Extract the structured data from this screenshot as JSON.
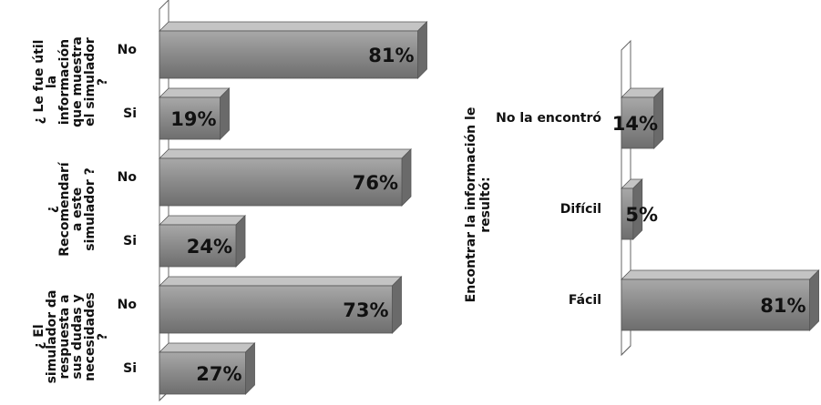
{
  "chart_data": [
    {
      "type": "bar",
      "orientation": "horizontal",
      "color": "#8a8a8a",
      "groups": [
        {
          "label": [
            "¿ Le fue útil",
            "la",
            "información",
            "que muestra",
            "el simulador",
            "?"
          ],
          "categories": [
            "No",
            "Si"
          ],
          "values": [
            81,
            19
          ],
          "value_labels": [
            "81%",
            "19%"
          ]
        },
        {
          "label": [
            "¿",
            "Recomendarí",
            "a este",
            "simulador ?"
          ],
          "categories": [
            "No",
            "Si"
          ],
          "values": [
            76,
            24
          ],
          "value_labels": [
            "76%",
            "24%"
          ]
        },
        {
          "label": [
            "¿ El",
            "simulador da",
            "respuesta a",
            "sus dudas y",
            "necesidades",
            "?"
          ],
          "categories": [
            "No",
            "Si"
          ],
          "values": [
            73,
            27
          ],
          "value_labels": [
            "73%",
            "27%"
          ]
        }
      ]
    },
    {
      "type": "bar",
      "orientation": "horizontal",
      "color": "#8a8a8a",
      "y_label": [
        "Encontrar la información le",
        "resultó:"
      ],
      "categories": [
        "No la encontró",
        "Difícil",
        "Fácil"
      ],
      "values": [
        14,
        5,
        81
      ],
      "value_labels": [
        "14%",
        "5%",
        "81%"
      ]
    }
  ]
}
